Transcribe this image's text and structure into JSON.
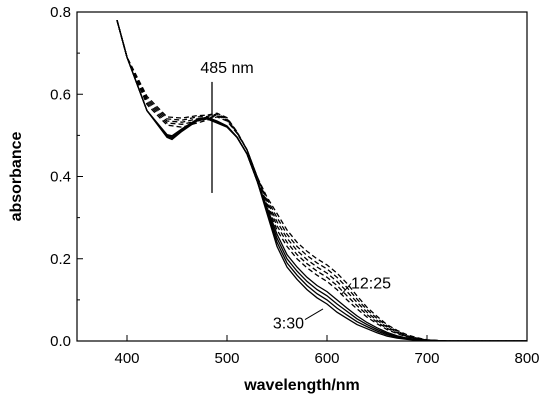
{
  "chart_data": {
    "type": "line",
    "title": "",
    "xlabel": "wavelength/nm",
    "ylabel": "absorbance",
    "xlim": [
      350,
      800
    ],
    "ylim": [
      0.0,
      0.8
    ],
    "x_ticks": [
      400,
      500,
      600,
      700,
      800
    ],
    "y_ticks": [
      0.0,
      0.2,
      0.4,
      0.6,
      0.8
    ],
    "x_tick_labels": [
      "400",
      "500",
      "600",
      "700",
      "800"
    ],
    "y_tick_labels": [
      "0.0",
      "0.2",
      "0.4",
      "0.6",
      "0.8"
    ],
    "grid": false,
    "legend": "none",
    "annotations": {
      "peak_label": "485 nm",
      "peak_x": 485,
      "peak_line_y": [
        0.36,
        0.63
      ],
      "late_label": "12:25",
      "early_label": "3:30"
    },
    "series": [
      {
        "style": "solid",
        "x": [
          390,
          400,
          420,
          440,
          445,
          455,
          470,
          480,
          490,
          500,
          510,
          520,
          530,
          540,
          550,
          560,
          570,
          580,
          590,
          600,
          610,
          620,
          630,
          640,
          650,
          660,
          670,
          680,
          690,
          700,
          720,
          750,
          800
        ],
        "y": [
          0.78,
          0.69,
          0.56,
          0.495,
          0.49,
          0.51,
          0.535,
          0.54,
          0.53,
          0.52,
          0.495,
          0.455,
          0.39,
          0.31,
          0.23,
          0.18,
          0.15,
          0.125,
          0.105,
          0.09,
          0.07,
          0.055,
          0.04,
          0.03,
          0.02,
          0.012,
          0.007,
          0.004,
          0.002,
          0.001,
          0,
          0,
          0
        ]
      },
      {
        "style": "solid",
        "x": [
          390,
          400,
          420,
          440,
          445,
          455,
          470,
          480,
          490,
          500,
          510,
          520,
          530,
          540,
          550,
          560,
          570,
          580,
          590,
          600,
          610,
          620,
          630,
          640,
          650,
          660,
          670,
          680,
          690,
          700,
          720,
          750,
          800
        ],
        "y": [
          0.78,
          0.69,
          0.56,
          0.498,
          0.493,
          0.512,
          0.537,
          0.542,
          0.532,
          0.521,
          0.495,
          0.455,
          0.39,
          0.315,
          0.24,
          0.19,
          0.16,
          0.135,
          0.115,
          0.1,
          0.08,
          0.063,
          0.047,
          0.035,
          0.024,
          0.015,
          0.009,
          0.005,
          0.003,
          0.001,
          0,
          0,
          0
        ]
      },
      {
        "style": "solid",
        "x": [
          390,
          400,
          420,
          440,
          445,
          455,
          470,
          480,
          490,
          500,
          510,
          520,
          530,
          540,
          550,
          560,
          570,
          580,
          590,
          600,
          610,
          620,
          630,
          640,
          650,
          660,
          670,
          680,
          690,
          700,
          720,
          750,
          800
        ],
        "y": [
          0.78,
          0.69,
          0.56,
          0.5,
          0.496,
          0.514,
          0.538,
          0.543,
          0.534,
          0.522,
          0.496,
          0.455,
          0.39,
          0.32,
          0.25,
          0.2,
          0.17,
          0.145,
          0.125,
          0.11,
          0.09,
          0.072,
          0.054,
          0.04,
          0.028,
          0.018,
          0.011,
          0.006,
          0.003,
          0.002,
          0,
          0,
          0
        ]
      },
      {
        "style": "solid",
        "x": [
          390,
          400,
          420,
          440,
          445,
          455,
          470,
          480,
          490,
          500,
          510,
          520,
          530,
          540,
          550,
          560,
          570,
          580,
          590,
          600,
          610,
          620,
          630,
          640,
          650,
          660,
          670,
          680,
          690,
          700,
          720,
          750,
          800
        ],
        "y": [
          0.78,
          0.69,
          0.56,
          0.502,
          0.499,
          0.516,
          0.539,
          0.544,
          0.535,
          0.523,
          0.496,
          0.455,
          0.39,
          0.325,
          0.26,
          0.21,
          0.18,
          0.155,
          0.135,
          0.12,
          0.1,
          0.08,
          0.061,
          0.045,
          0.032,
          0.021,
          0.013,
          0.007,
          0.004,
          0.002,
          0,
          0,
          0
        ]
      },
      {
        "style": "dashed",
        "x": [
          390,
          400,
          420,
          440,
          455,
          470,
          480,
          490,
          500,
          510,
          520,
          530,
          540,
          550,
          560,
          570,
          580,
          590,
          600,
          610,
          620,
          630,
          640,
          650,
          660,
          670,
          680,
          690,
          700,
          720,
          750,
          800
        ],
        "y": [
          0.78,
          0.69,
          0.575,
          0.525,
          0.52,
          0.53,
          0.537,
          0.545,
          0.535,
          0.505,
          0.465,
          0.4,
          0.33,
          0.27,
          0.23,
          0.2,
          0.178,
          0.16,
          0.145,
          0.125,
          0.1,
          0.078,
          0.058,
          0.042,
          0.028,
          0.018,
          0.01,
          0.005,
          0.002,
          0,
          0,
          0
        ]
      },
      {
        "style": "dashed",
        "x": [
          390,
          400,
          420,
          440,
          455,
          470,
          480,
          490,
          500,
          510,
          520,
          530,
          540,
          550,
          560,
          570,
          580,
          590,
          600,
          610,
          620,
          630,
          640,
          650,
          660,
          670,
          680,
          690,
          700,
          720,
          750,
          800
        ],
        "y": [
          0.78,
          0.69,
          0.58,
          0.53,
          0.527,
          0.535,
          0.54,
          0.548,
          0.537,
          0.506,
          0.465,
          0.4,
          0.335,
          0.28,
          0.24,
          0.21,
          0.188,
          0.17,
          0.155,
          0.135,
          0.11,
          0.086,
          0.064,
          0.046,
          0.031,
          0.02,
          0.011,
          0.006,
          0.002,
          0,
          0,
          0
        ]
      },
      {
        "style": "dashed",
        "x": [
          390,
          400,
          420,
          440,
          455,
          470,
          480,
          490,
          500,
          510,
          520,
          530,
          540,
          550,
          560,
          570,
          580,
          590,
          600,
          610,
          620,
          630,
          640,
          650,
          660,
          670,
          680,
          690,
          700,
          720,
          750,
          800
        ],
        "y": [
          0.78,
          0.69,
          0.585,
          0.535,
          0.532,
          0.54,
          0.543,
          0.55,
          0.539,
          0.507,
          0.465,
          0.4,
          0.34,
          0.29,
          0.25,
          0.22,
          0.198,
          0.18,
          0.165,
          0.145,
          0.12,
          0.094,
          0.07,
          0.05,
          0.034,
          0.022,
          0.012,
          0.006,
          0.002,
          0,
          0,
          0
        ]
      },
      {
        "style": "dashed",
        "x": [
          390,
          400,
          420,
          440,
          455,
          470,
          480,
          490,
          500,
          510,
          520,
          530,
          540,
          550,
          560,
          570,
          580,
          590,
          600,
          610,
          620,
          630,
          640,
          650,
          660,
          670,
          680,
          690,
          700,
          720,
          750,
          800
        ],
        "y": [
          0.78,
          0.69,
          0.59,
          0.54,
          0.537,
          0.545,
          0.546,
          0.552,
          0.541,
          0.508,
          0.465,
          0.4,
          0.345,
          0.3,
          0.26,
          0.23,
          0.208,
          0.19,
          0.175,
          0.155,
          0.13,
          0.102,
          0.076,
          0.055,
          0.037,
          0.024,
          0.013,
          0.007,
          0.002,
          0,
          0,
          0
        ]
      },
      {
        "style": "dashed",
        "x": [
          390,
          400,
          420,
          440,
          455,
          470,
          480,
          490,
          500,
          510,
          520,
          530,
          540,
          550,
          560,
          570,
          580,
          590,
          600,
          610,
          620,
          630,
          640,
          650,
          660,
          670,
          680,
          690,
          700,
          720,
          750,
          800
        ],
        "y": [
          0.78,
          0.69,
          0.595,
          0.545,
          0.542,
          0.548,
          0.549,
          0.554,
          0.543,
          0.509,
          0.465,
          0.4,
          0.35,
          0.31,
          0.27,
          0.24,
          0.218,
          0.2,
          0.185,
          0.165,
          0.14,
          0.11,
          0.082,
          0.06,
          0.04,
          0.026,
          0.015,
          0.008,
          0.003,
          0,
          0,
          0
        ]
      }
    ]
  }
}
